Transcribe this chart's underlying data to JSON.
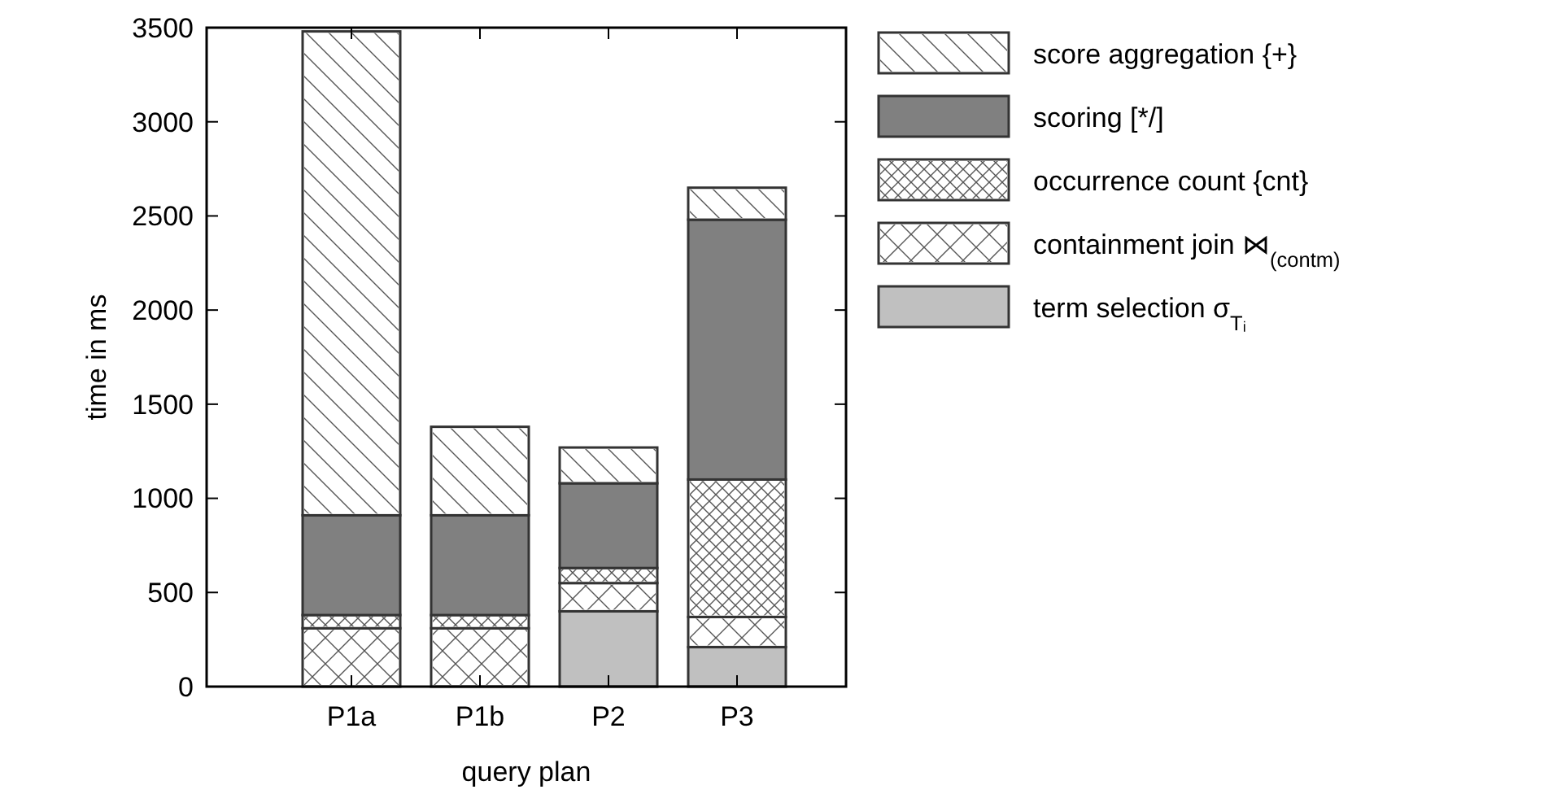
{
  "chart_data": {
    "type": "bar",
    "stacked": true,
    "xlabel": "query plan",
    "ylabel": "time in ms",
    "categories": [
      "P1a",
      "P1b",
      "P2",
      "P3"
    ],
    "ylim": [
      0,
      3500
    ],
    "yticks": [
      0,
      500,
      1000,
      1500,
      2000,
      2500,
      3000,
      3500
    ],
    "legend": "right",
    "grid": false,
    "series": [
      {
        "name": "term selection σ$_{Tᵢ}$",
        "color": "#c0c0c0",
        "values": [
          0,
          0,
          400,
          210
        ]
      },
      {
        "name": "containment join ⋈$_{(contm)}$",
        "color": "#ffffff",
        "values": [
          310,
          310,
          150,
          160
        ]
      },
      {
        "name": "occurrence count {cnt}",
        "color": "#ffffff",
        "values": [
          70,
          70,
          80,
          730
        ]
      },
      {
        "name": "scoring [*/]",
        "color": "#808080",
        "values": [
          530,
          530,
          450,
          1380
        ]
      },
      {
        "name": "score aggregation {+}",
        "color": "#ffffff",
        "values": [
          2570,
          470,
          190,
          170
        ]
      }
    ]
  }
}
